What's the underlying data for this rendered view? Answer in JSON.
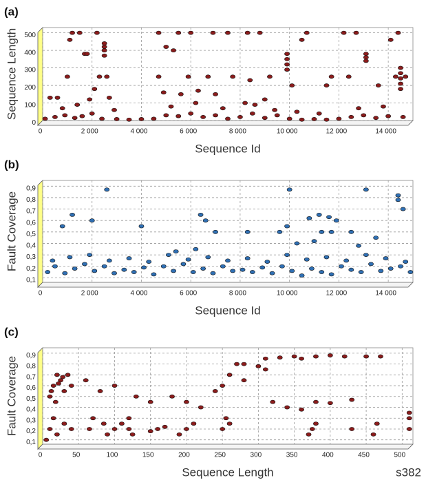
{
  "chart_data": [
    {
      "type": "scatter",
      "label": "(a)",
      "xlabel": "Sequence Id",
      "ylabel": "Sequence Length",
      "color": "#8b1c1c",
      "grid": true,
      "xlim": [
        0,
        15000
      ],
      "ylim": [
        0,
        530
      ],
      "xticks": [
        0,
        {
          "value": 2000,
          "label": "2 000"
        },
        {
          "value": 4000,
          "label": "4 000"
        },
        {
          "value": 6000,
          "label": "6 000"
        },
        {
          "value": 8000,
          "label": "8 000"
        },
        {
          "value": 10000,
          "label": "10 000"
        },
        {
          "value": 12000,
          "label": "12 000"
        },
        {
          "value": 14000,
          "label": "14 000"
        }
      ],
      "yticks": [
        0,
        100,
        200,
        300,
        400,
        500
      ],
      "x": [
        1200,
        1500,
        2200,
        1100,
        1700,
        1800,
        2500,
        2500,
        2500,
        2500,
        1000,
        2300,
        2600,
        2100,
        600,
        1900,
        2700,
        300,
        4700,
        5500,
        6000,
        6900,
        7500,
        8300,
        8800,
        5000,
        5300,
        4700,
        5900,
        6700,
        7700,
        8400,
        9200,
        9900,
        9900,
        9900,
        9900,
        10700,
        10500,
        12200,
        12700,
        14400,
        14100,
        13100,
        13100,
        13100,
        12400,
        13600,
        14500,
        14500,
        14500,
        14500,
        14500,
        14700,
        14300,
        11700,
        11500,
        10100,
        9000,
        8200,
        7000,
        6300,
        5600,
        4900,
        100,
        500,
        900,
        1300,
        1600,
        2000,
        2400,
        3000,
        3500,
        4000,
        4500,
        5000,
        5500,
        6000,
        6500,
        7000,
        7500,
        8000,
        8500,
        9000,
        9500,
        10000,
        10500,
        11000,
        11500,
        12000,
        12500,
        13000,
        13500,
        14000,
        14600,
        800,
        1400,
        2900,
        5200,
        6200,
        7300,
        8600,
        9400,
        10300,
        11200,
        12800,
        13800
      ],
      "y": [
        500,
        500,
        500,
        460,
        380,
        380,
        440,
        420,
        400,
        370,
        250,
        250,
        250,
        180,
        130,
        120,
        130,
        130,
        500,
        500,
        500,
        500,
        500,
        500,
        500,
        420,
        400,
        250,
        250,
        250,
        250,
        230,
        250,
        380,
        350,
        320,
        290,
        500,
        460,
        500,
        500,
        500,
        460,
        380,
        360,
        340,
        250,
        200,
        300,
        270,
        240,
        210,
        180,
        250,
        250,
        250,
        200,
        200,
        120,
        100,
        150,
        170,
        150,
        160,
        10,
        20,
        30,
        15,
        25,
        40,
        10,
        8,
        5,
        8,
        10,
        30,
        25,
        40,
        20,
        30,
        10,
        20,
        40,
        15,
        30,
        10,
        5,
        8,
        5,
        10,
        20,
        30,
        15,
        25,
        20,
        70,
        90,
        60,
        80,
        100,
        70,
        90,
        60,
        50,
        40,
        70,
        80
      ]
    },
    {
      "type": "scatter",
      "label": "(b)",
      "xlabel": "Sequence Id",
      "ylabel": "Fault Coverage",
      "color": "#2f6fb3",
      "grid": true,
      "xlim": [
        0,
        15000
      ],
      "ylim": [
        0.06,
        0.95
      ],
      "xticks": [
        0,
        {
          "value": 2000,
          "label": "2 000"
        },
        {
          "value": 4000,
          "label": "4 000"
        },
        {
          "value": 6000,
          "label": "6 000"
        },
        {
          "value": 8000,
          "label": "8 000"
        },
        {
          "value": 10000,
          "label": "10 000"
        },
        {
          "value": 12000,
          "label": "12 000"
        },
        {
          "value": 14000,
          "label": "14 000"
        }
      ],
      "yticks": [
        {
          "value": 0.1,
          "label": "0,1"
        },
        {
          "value": 0.2,
          "label": "0,2"
        },
        {
          "value": 0.3,
          "label": "0,3"
        },
        {
          "value": 0.4,
          "label": "0,4"
        },
        {
          "value": 0.5,
          "label": "0,5"
        },
        {
          "value": 0.6,
          "label": "0,6"
        },
        {
          "value": 0.7,
          "label": "0,7"
        },
        {
          "value": 0.8,
          "label": "0,8"
        },
        {
          "value": 0.9,
          "label": "0,9"
        }
      ],
      "x": [
        2600,
        10000,
        13100,
        14400,
        14400,
        10800,
        11200,
        11600,
        11900,
        11300,
        11700,
        12500,
        9900,
        9600,
        6400,
        6600,
        800,
        1200,
        2000,
        4000,
        7000,
        8300,
        13500,
        14600,
        200,
        500,
        900,
        1300,
        1700,
        2100,
        2500,
        2900,
        3300,
        3700,
        4100,
        4500,
        4900,
        5300,
        5700,
        6100,
        6500,
        6900,
        7300,
        7700,
        8100,
        8500,
        8900,
        9300,
        9700,
        10100,
        10500,
        10900,
        11300,
        11700,
        12100,
        12500,
        12900,
        13300,
        13700,
        14100,
        14500,
        14900,
        400,
        1100,
        1900,
        2700,
        3500,
        4300,
        5100,
        5900,
        6700,
        7500,
        8300,
        9100,
        9900,
        10700,
        11500,
        12300,
        13100,
        13900,
        14700,
        10300,
        11000,
        12800,
        6200,
        5400
      ],
      "y": [
        0.87,
        0.87,
        0.87,
        0.82,
        0.78,
        0.62,
        0.65,
        0.63,
        0.6,
        0.5,
        0.5,
        0.5,
        0.55,
        0.5,
        0.65,
        0.6,
        0.55,
        0.65,
        0.6,
        0.55,
        0.5,
        0.5,
        0.45,
        0.7,
        0.15,
        0.2,
        0.14,
        0.18,
        0.22,
        0.16,
        0.2,
        0.14,
        0.17,
        0.15,
        0.19,
        0.13,
        0.2,
        0.16,
        0.22,
        0.15,
        0.18,
        0.14,
        0.2,
        0.16,
        0.17,
        0.15,
        0.19,
        0.14,
        0.2,
        0.16,
        0.12,
        0.18,
        0.15,
        0.13,
        0.2,
        0.17,
        0.15,
        0.22,
        0.16,
        0.18,
        0.2,
        0.15,
        0.25,
        0.28,
        0.3,
        0.25,
        0.27,
        0.24,
        0.3,
        0.26,
        0.28,
        0.25,
        0.27,
        0.24,
        0.3,
        0.26,
        0.28,
        0.25,
        0.3,
        0.27,
        0.24,
        0.4,
        0.42,
        0.38,
        0.35,
        0.33
      ]
    },
    {
      "type": "scatter",
      "label": "(c)",
      "xlabel": "Sequence Length",
      "ylabel": "Fault Coverage",
      "annotation": "s382",
      "color": "#8b1c1c",
      "grid": true,
      "xlim": [
        0,
        515
      ],
      "ylim": [
        0.06,
        0.95
      ],
      "xticks": [
        0,
        50,
        100,
        150,
        200,
        250,
        300,
        350,
        400,
        450,
        500
      ],
      "yticks": [
        {
          "value": 0.1,
          "label": "0,1"
        },
        {
          "value": 0.2,
          "label": "0,2"
        },
        {
          "value": 0.3,
          "label": "0,3"
        },
        {
          "value": 0.4,
          "label": "0,4"
        },
        {
          "value": 0.5,
          "label": "0,5"
        },
        {
          "value": 0.6,
          "label": "0,6"
        },
        {
          "value": 0.7,
          "label": "0,7"
        },
        {
          "value": 0.8,
          "label": "0,8"
        },
        {
          "value": 0.9,
          "label": "0,9"
        }
      ],
      "x": [
        15,
        20,
        25,
        30,
        10,
        18,
        35,
        40,
        60,
        80,
        100,
        130,
        150,
        200,
        220,
        250,
        260,
        280,
        300,
        310,
        330,
        350,
        380,
        400,
        420,
        450,
        470,
        320,
        340,
        360,
        380,
        400,
        430,
        280,
        310,
        270,
        360,
        240,
        180,
        120,
        5,
        10,
        15,
        20,
        30,
        40,
        65,
        70,
        85,
        90,
        100,
        110,
        120,
        125,
        150,
        160,
        170,
        190,
        200,
        210,
        250,
        255,
        260,
        370,
        375,
        380,
        430,
        460,
        465,
        510,
        510,
        510,
        12,
        22,
        28
      ],
      "y": [
        0.6,
        0.7,
        0.65,
        0.55,
        0.5,
        0.45,
        0.7,
        0.6,
        0.65,
        0.55,
        0.6,
        0.5,
        0.45,
        0.45,
        0.4,
        0.6,
        0.7,
        0.8,
        0.78,
        0.85,
        0.86,
        0.87,
        0.87,
        0.88,
        0.87,
        0.87,
        0.87,
        0.45,
        0.4,
        0.38,
        0.45,
        0.44,
        0.47,
        0.65,
        0.75,
        0.8,
        0.85,
        0.55,
        0.5,
        0.3,
        0.1,
        0.2,
        0.3,
        0.15,
        0.25,
        0.2,
        0.2,
        0.3,
        0.25,
        0.15,
        0.2,
        0.25,
        0.2,
        0.15,
        0.18,
        0.2,
        0.22,
        0.15,
        0.2,
        0.25,
        0.2,
        0.3,
        0.25,
        0.15,
        0.2,
        0.25,
        0.2,
        0.15,
        0.25,
        0.2,
        0.35,
        0.3,
        0.55,
        0.62,
        0.68
      ]
    }
  ]
}
